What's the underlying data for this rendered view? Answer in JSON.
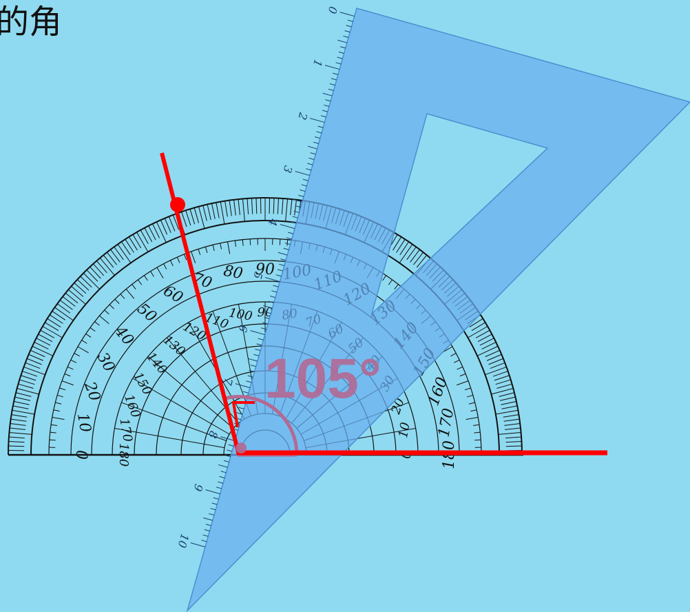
{
  "header": {
    "title_fragment": "的角"
  },
  "angle": {
    "label": "105°",
    "value": 105
  },
  "protractor": {
    "outer_scale": [
      "0",
      "10",
      "20",
      "30",
      "40",
      "50",
      "60",
      "70",
      "80",
      "90",
      "100",
      "110",
      "120",
      "130",
      "140",
      "150",
      "160",
      "170",
      "180"
    ],
    "inner_scale": [
      "180",
      "170",
      "160",
      "150",
      "140",
      "130",
      "120",
      "110",
      "100",
      "90",
      "80",
      "70",
      "60",
      "50",
      "40",
      "30",
      "20",
      "10",
      "0"
    ]
  },
  "set_square": {
    "ruler_marks": [
      "0",
      "1",
      "2",
      "3",
      "4",
      "5",
      "6",
      "7",
      "8",
      "9",
      "10"
    ]
  },
  "colors": {
    "background": "#8fdaf0",
    "ray": "#ff0000",
    "set_square": "#6aaff0",
    "angle_arc": "#b36a93",
    "ink": "#111111"
  },
  "icons": [
    "vertex-point-icon",
    "right-angle-mark-icon"
  ]
}
